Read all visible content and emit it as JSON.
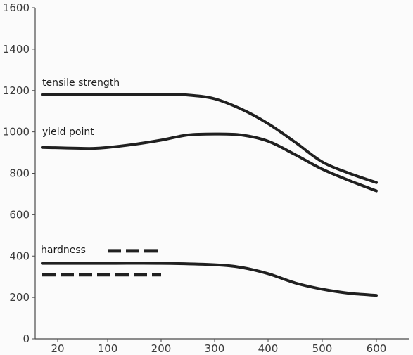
{
  "chart_data": {
    "type": "line",
    "title": "",
    "xlabel": "",
    "ylabel": "",
    "x_ticks": [
      20,
      100,
      200,
      300,
      400,
      500,
      600
    ],
    "y_ticks": [
      0,
      200,
      400,
      600,
      800,
      1000,
      1200,
      1400,
      1600
    ],
    "xlim": [
      -20,
      680
    ],
    "ylim": [
      0,
      1600
    ],
    "grid": false,
    "series": [
      {
        "name": "tensile strength",
        "style": "solid",
        "x": [
          20,
          100,
          200,
          250,
          300,
          350,
          400,
          450,
          500,
          550,
          600
        ],
        "y": [
          1180,
          1180,
          1180,
          1178,
          1160,
          1110,
          1040,
          950,
          855,
          800,
          755
        ]
      },
      {
        "name": "yield point",
        "style": "solid",
        "x": [
          20,
          70,
          100,
          150,
          200,
          250,
          300,
          350,
          400,
          450,
          500,
          550,
          600
        ],
        "y": [
          925,
          920,
          925,
          940,
          960,
          985,
          990,
          985,
          955,
          890,
          820,
          765,
          715
        ]
      },
      {
        "name": "hardness",
        "style": "solid",
        "x": [
          20,
          100,
          200,
          300,
          350,
          400,
          450,
          500,
          550,
          600
        ],
        "y": [
          365,
          365,
          365,
          358,
          345,
          315,
          270,
          240,
          220,
          210
        ]
      },
      {
        "name": "",
        "style": "dashed",
        "x": [
          20,
          200
        ],
        "y": [
          310,
          310
        ]
      },
      {
        "name": "",
        "style": "dashed",
        "x": [
          100,
          200
        ],
        "y": [
          425,
          425
        ]
      }
    ]
  }
}
